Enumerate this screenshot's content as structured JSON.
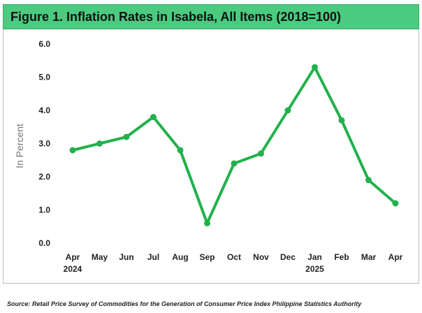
{
  "title": "Figure 1.  Inflation Rates in Isabela, All Items (2018=100)",
  "source": "Source: Retail Price Survey of Commodities for the Generation of Consumer Price Index Philippine Statistics Authority",
  "chart_data": {
    "type": "line",
    "categories": [
      "Apr",
      "May",
      "Jun",
      "Jul",
      "Aug",
      "Sep",
      "Oct",
      "Nov",
      "Dec",
      "Jan",
      "Feb",
      "Mar",
      "Apr"
    ],
    "year_labels": [
      "2024",
      "",
      "",
      "",
      "",
      "",
      "",
      "",
      "",
      "2025",
      "",
      "",
      ""
    ],
    "series": [
      {
        "values": [
          2.8,
          3.0,
          3.2,
          3.8,
          2.8,
          0.6,
          2.4,
          2.7,
          4.0,
          5.3,
          3.7,
          1.9,
          1.2
        ]
      }
    ],
    "ylabel": "In Percent",
    "ylim": [
      0,
      6
    ],
    "yticks": [
      "0.0",
      "1.0",
      "2.0",
      "3.0",
      "4.0",
      "5.0",
      "6.0"
    ],
    "grid": false,
    "line_color": "#22b14c"
  }
}
